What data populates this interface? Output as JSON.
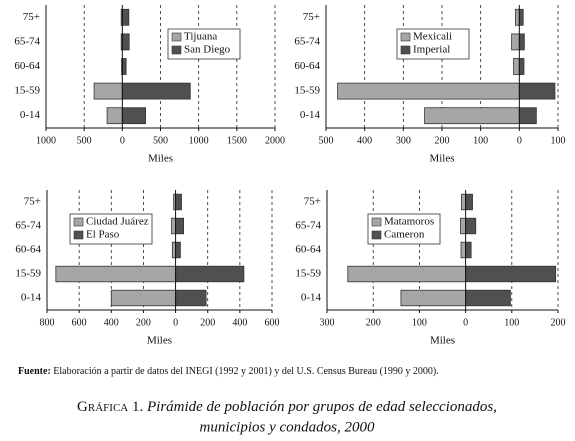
{
  "chart_data": [
    {
      "type": "bar",
      "orientation": "horizontal",
      "categories": [
        "75+",
        "65-74",
        "60-64",
        "15-59",
        "0-14"
      ],
      "series": [
        {
          "name": "Tijuana",
          "color": "#a6a6a6",
          "values": [
            -15,
            -15,
            -10,
            -370,
            -200
          ]
        },
        {
          "name": "San Diego",
          "color": "#505050",
          "values": [
            85,
            90,
            50,
            890,
            305
          ]
        }
      ],
      "xlim": [
        -1000,
        2000
      ],
      "xticks": [
        {
          "value": -1000,
          "label": "1000"
        },
        {
          "value": -500,
          "label": "500"
        },
        0,
        500,
        1000,
        1500,
        2000
      ],
      "xlabel": "Miles",
      "grid": true,
      "legend": "upper center"
    },
    {
      "type": "bar",
      "orientation": "horizontal",
      "categories": [
        "75+",
        "65-74",
        "60-64",
        "15-59",
        "0-14"
      ],
      "series": [
        {
          "name": "Mexicali",
          "color": "#a6a6a6",
          "values": [
            -10,
            -20,
            -15,
            -470,
            -245
          ]
        },
        {
          "name": "Imperial",
          "color": "#505050",
          "values": [
            10,
            13,
            12,
            92,
            44
          ]
        }
      ],
      "xlim": [
        -500,
        100
      ],
      "xticks": [
        {
          "value": -500,
          "label": "500"
        },
        {
          "value": -400,
          "label": "400"
        },
        {
          "value": -300,
          "label": "300"
        },
        {
          "value": -200,
          "label": "200"
        },
        {
          "value": -100,
          "label": "100"
        },
        0,
        100
      ],
      "xlabel": "Miles",
      "grid": true,
      "legend": "upper center"
    },
    {
      "type": "bar",
      "orientation": "horizontal",
      "categories": [
        "75+",
        "65-74",
        "60-64",
        "15-59",
        "0-14"
      ],
      "series": [
        {
          "name": "Ciudad Juárez",
          "color": "#a6a6a6",
          "values": [
            -12,
            -25,
            -20,
            -745,
            -400
          ]
        },
        {
          "name": "El Paso",
          "color": "#505050",
          "values": [
            37,
            50,
            30,
            425,
            190
          ]
        }
      ],
      "xlim": [
        -800,
        600
      ],
      "xticks": [
        {
          "value": -800,
          "label": "800"
        },
        {
          "value": -600,
          "label": "600"
        },
        {
          "value": -400,
          "label": "400"
        },
        {
          "value": -200,
          "label": "200"
        },
        0,
        200,
        400,
        600
      ],
      "xlabel": "Miles",
      "grid": true,
      "legend": "upper center"
    },
    {
      "type": "bar",
      "orientation": "horizontal",
      "categories": [
        "75+",
        "65-74",
        "60-64",
        "15-59",
        "0-14"
      ],
      "series": [
        {
          "name": "Matamoros",
          "color": "#a6a6a6",
          "values": [
            -9,
            -11,
            -10,
            -255,
            -140
          ]
        },
        {
          "name": "Cameron",
          "color": "#505050",
          "values": [
            15,
            22,
            12,
            195,
            97
          ]
        }
      ],
      "xlim": [
        -300,
        200
      ],
      "xticks": [
        {
          "value": -300,
          "label": "300"
        },
        {
          "value": -200,
          "label": "200"
        },
        {
          "value": -100,
          "label": "100"
        },
        0,
        100,
        200
      ],
      "xlabel": "Miles",
      "grid": true,
      "legend": "upper center"
    }
  ],
  "source": {
    "label": "Fuente:",
    "text": "Elaboración a partir de datos del INEGI (1992 y 2001) y del U.S. Census Bureau (1990 y 2000)."
  },
  "caption": {
    "label": "Gráfica 1.",
    "line1": "Pirámide de población por grupos de edad seleccionados,",
    "line2": "municipios y condados, 2000"
  }
}
